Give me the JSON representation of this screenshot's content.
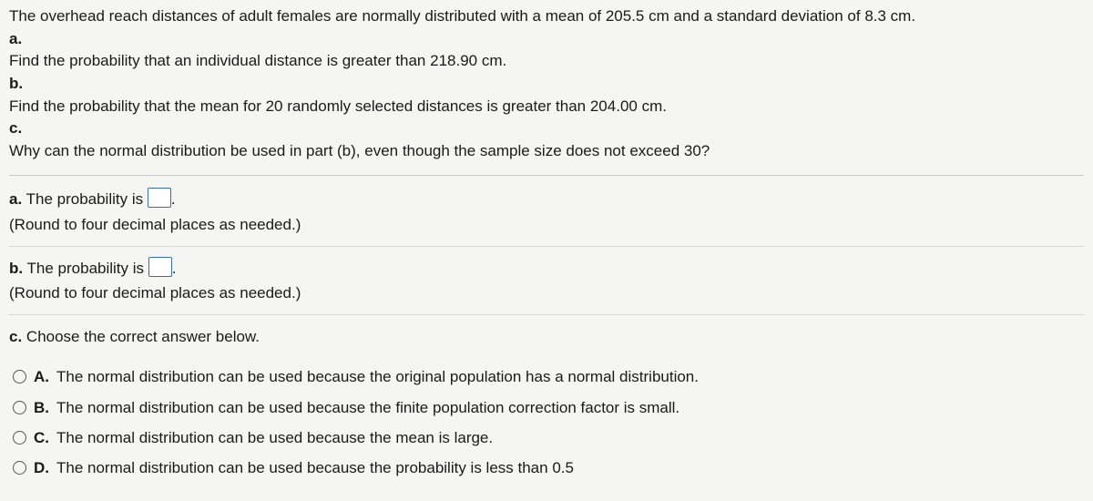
{
  "problem": {
    "intro": "The overhead reach distances of adult females are normally distributed with a mean of 205.5 cm and a standard deviation of 8.3 cm.",
    "parts": {
      "a_label": "a.",
      "a_text": " Find the probability that an individual distance is greater than 218.90 cm.",
      "b_label": "b.",
      "b_text": " Find the probability that the mean for 20 randomly selected distances is greater than 204.00 cm.",
      "c_label": "c.",
      "c_text": " Why can the normal distribution be used in part (b), even though the sample size does not exceed 30?"
    }
  },
  "answers": {
    "a": {
      "label": "a.",
      "text_before": " The probability is ",
      "text_after": ".",
      "hint": "(Round to four decimal places as needed.)"
    },
    "b": {
      "label": "b.",
      "text_before": " The probability is ",
      "text_after": ".",
      "hint": "(Round to four decimal places as needed.)"
    },
    "c": {
      "label": "c.",
      "prompt": " Choose the correct answer below."
    }
  },
  "choices": {
    "A": {
      "label": "A.",
      "text": "The normal distribution can be used because the original population has a normal distribution."
    },
    "B": {
      "label": "B.",
      "text": "The normal distribution can be used because the finite population correction factor is small."
    },
    "C": {
      "label": "C.",
      "text": "The normal distribution can be used because the mean is large."
    },
    "D": {
      "label": "D.",
      "text": "The normal distribution can be used because the probability is less than 0.5"
    }
  }
}
